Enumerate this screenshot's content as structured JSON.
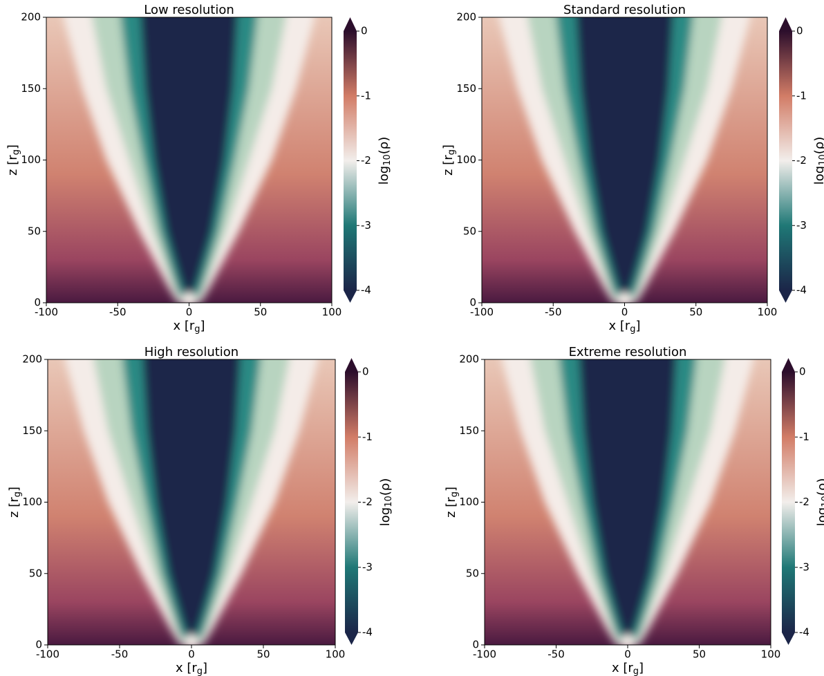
{
  "chart_data": [
    {
      "type": "heatmap",
      "title": "Low resolution",
      "xlabel": [
        "x [r",
        "g",
        "]"
      ],
      "ylabel": [
        "z [r",
        "g",
        "]"
      ],
      "xlim": [
        -100,
        100
      ],
      "ylim": [
        0,
        200
      ],
      "xticks": [
        -100,
        -50,
        0,
        50,
        100
      ],
      "yticks": [
        0,
        50,
        100,
        150,
        200
      ],
      "colorbar": {
        "label": [
          "log",
          "10",
          "(ρ)"
        ],
        "lim": [
          -4,
          0
        ],
        "ticks": [
          0,
          -1,
          -2,
          -3,
          -4
        ],
        "colors": [
          "#1b2548",
          "#1f7876",
          "#f2eeeb",
          "#d27c66",
          "#2c0e2c"
        ]
      }
    },
    {
      "type": "heatmap",
      "title": "Standard resolution",
      "xlabel": [
        "x [r",
        "g",
        "]"
      ],
      "ylabel": [
        "z [r",
        "g",
        "]"
      ],
      "xlim": [
        -100,
        100
      ],
      "ylim": [
        0,
        200
      ],
      "xticks": [
        -100,
        -50,
        0,
        50,
        100
      ],
      "yticks": [
        0,
        50,
        100,
        150,
        200
      ],
      "colorbar": {
        "label": [
          "log",
          "10",
          "(ρ)"
        ],
        "lim": [
          -4,
          0
        ],
        "ticks": [
          0,
          -1,
          -2,
          -3,
          -4
        ],
        "colors": [
          "#1b2548",
          "#1f7876",
          "#f2eeeb",
          "#d27c66",
          "#2c0e2c"
        ]
      }
    },
    {
      "type": "heatmap",
      "title": "High resolution",
      "xlabel": [
        "x [r",
        "g",
        "]"
      ],
      "ylabel": [
        "z [r",
        "g",
        "]"
      ],
      "xlim": [
        -100,
        100
      ],
      "ylim": [
        0,
        200
      ],
      "xticks": [
        -100,
        -50,
        0,
        50,
        100
      ],
      "yticks": [
        0,
        50,
        100,
        150,
        200
      ],
      "colorbar": {
        "label": [
          "log",
          "10",
          "(ρ)"
        ],
        "lim": [
          -4,
          0
        ],
        "ticks": [
          0,
          -1,
          -2,
          -3,
          -4
        ],
        "colors": [
          "#1b2548",
          "#1f7876",
          "#f2eeeb",
          "#d27c66",
          "#2c0e2c"
        ]
      }
    },
    {
      "type": "heatmap",
      "title": "Extreme resolution",
      "xlabel": [
        "x [r",
        "g",
        "]"
      ],
      "ylabel": [
        "z [r",
        "g",
        "]"
      ],
      "xlim": [
        -100,
        100
      ],
      "ylim": [
        0,
        200
      ],
      "xticks": [
        -100,
        -50,
        0,
        50,
        100
      ],
      "yticks": [
        0,
        50,
        100,
        150,
        200
      ],
      "colorbar": {
        "label": [
          "log",
          "10",
          "(ρ)"
        ],
        "lim": [
          -4,
          0
        ],
        "ticks": [
          0,
          -1,
          -2,
          -3,
          -4
        ],
        "colors": [
          "#1b2548",
          "#1f7876",
          "#f2eeeb",
          "#d27c66",
          "#2c0e2c"
        ]
      }
    }
  ]
}
